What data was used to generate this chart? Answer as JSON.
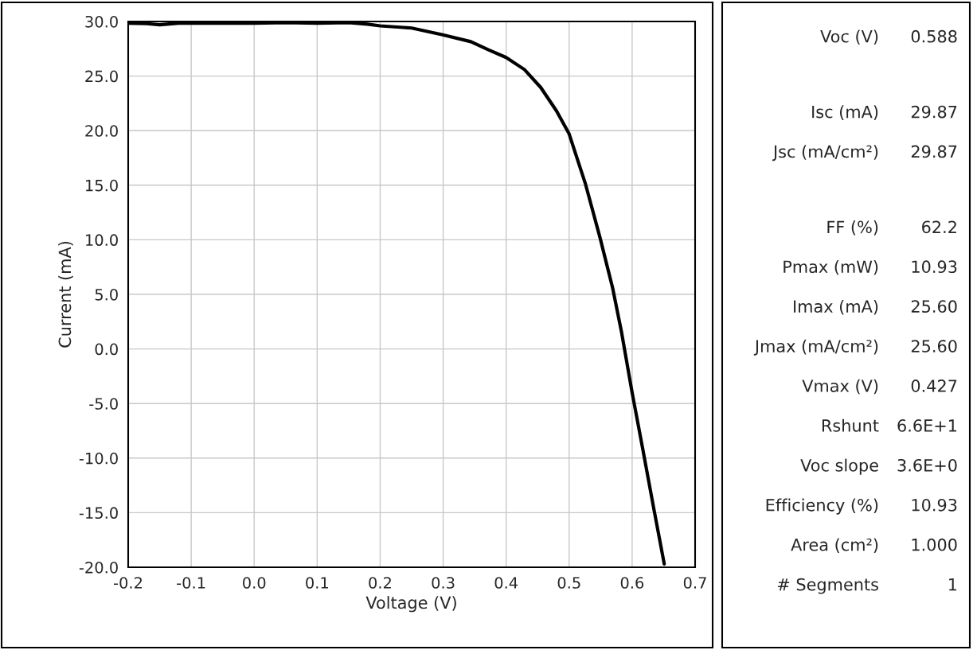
{
  "chart_data": [
    {
      "type": "line",
      "xlabel": "Voltage (V)",
      "ylabel": "Current (mA)",
      "grid": true,
      "marker": "none",
      "line_style": "solid",
      "xlim": [
        -0.2,
        0.7
      ],
      "ylim": [
        -20,
        30
      ],
      "xticks": [
        {
          "value": -0.2,
          "label": "-0.2"
        },
        {
          "value": -0.1,
          "label": "-0.1"
        },
        {
          "value": 0.0,
          "label": "0.0"
        },
        0.1,
        0.2,
        0.3,
        0.4,
        0.5,
        0.6,
        0.7
      ],
      "yticks": [
        {
          "value": -20,
          "label": "-20.0"
        },
        {
          "value": -15,
          "label": "-15.0"
        },
        {
          "value": -10,
          "label": "-10.0"
        },
        {
          "value": -5,
          "label": "-5.0"
        },
        {
          "value": 0,
          "label": "0.0"
        },
        {
          "value": 5,
          "label": "5.0"
        },
        {
          "value": 10,
          "label": "10.0"
        },
        {
          "value": 15,
          "label": "15.0"
        },
        {
          "value": 20,
          "label": "20.0"
        },
        {
          "value": 25,
          "label": "25.0"
        },
        {
          "value": 30,
          "label": "30.0"
        }
      ],
      "series": [
        {
          "color": "#000000",
          "x": [
            -0.2,
            -0.17,
            -0.15,
            -0.12,
            -0.05,
            0.0,
            0.05,
            0.1,
            0.15,
            0.18,
            0.2,
            0.25,
            0.298,
            0.344,
            0.372,
            0.4,
            0.429,
            0.455,
            0.48,
            0.5,
            0.526,
            0.549,
            0.569,
            0.583,
            0.6,
            0.617,
            0.634,
            0.651
          ],
          "values": [
            29.85,
            29.8,
            29.7,
            29.85,
            29.85,
            29.85,
            29.9,
            29.85,
            29.9,
            29.75,
            29.6,
            29.4,
            28.8,
            28.15,
            27.4,
            26.7,
            25.6,
            23.95,
            21.8,
            19.7,
            15.1,
            10.2,
            5.6,
            1.6,
            -4.0,
            -9.2,
            -14.5,
            -19.7
          ]
        }
      ]
    },
    {
      "type": "other",
      "annotations": [
        "Voc (V)",
        "0.588",
        "Isc (mA)",
        "29.87",
        "Jsc (mA/cm²)",
        "29.87",
        "FF (%)",
        "62.2",
        "Pmax (mW)",
        "10.93",
        "Imax (mA)",
        "25.60",
        "Jmax (mA/cm²)",
        "25.60",
        "Vmax (V)",
        "0.427",
        "Rshunt",
        "6.6E+1",
        "Voc slope",
        "3.6E+0",
        "Efficiency (%)",
        "10.93",
        "Area (cm²)",
        "1.000",
        "# Segments",
        "1"
      ]
    }
  ]
}
